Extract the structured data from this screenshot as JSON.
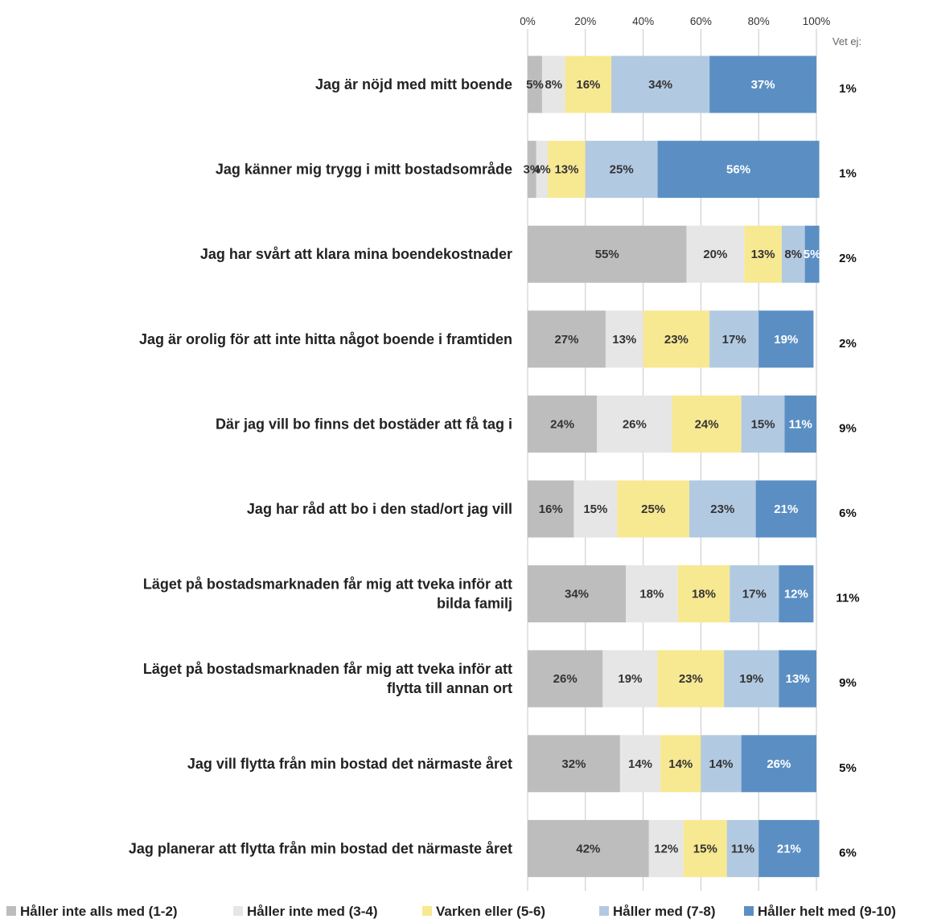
{
  "chart_data": {
    "type": "bar",
    "orientation": "horizontal",
    "stacked": true,
    "xlim": [
      0,
      100
    ],
    "x_ticks": [
      "0%",
      "20%",
      "40%",
      "60%",
      "80%",
      "100%"
    ],
    "extra_column_header": "Vet ej:",
    "categories": [
      [
        "Jag är nöjd med mitt boende"
      ],
      [
        "Jag känner mig trygg i mitt bostadsområde"
      ],
      [
        "Jag har svårt att klara mina boendekostnader"
      ],
      [
        "Jag är orolig för att inte hitta något boende i framtiden"
      ],
      [
        "Där jag vill bo finns det bostäder att få tag i"
      ],
      [
        "Jag har råd att bo i den stad/ort jag vill"
      ],
      [
        "Läget på bostadsmarknaden får mig att tveka inför att",
        "bilda familj"
      ],
      [
        "Läget på bostadsmarknaden får mig att tveka inför att",
        "flytta till annan ort"
      ],
      [
        "Jag vill flytta från min bostad det närmaste året"
      ],
      [
        "Jag planerar att flytta från min bostad det närmaste året"
      ]
    ],
    "series": [
      {
        "name": "Håller inte alls med (1-2)",
        "color": "#bdbdbd",
        "label_color": "#333333",
        "values": [
          5,
          3,
          55,
          27,
          24,
          16,
          34,
          26,
          32,
          42
        ],
        "labels": [
          "5%",
          "3%",
          "55%",
          "27%",
          "24%",
          "16%",
          "34%",
          "26%",
          "32%",
          "42%"
        ]
      },
      {
        "name": "Håller inte med (3-4)",
        "color": "#e6e6e6",
        "label_color": "#333333",
        "values": [
          8,
          4,
          20,
          13,
          26,
          15,
          18,
          19,
          14,
          12
        ],
        "labels": [
          "8%",
          "4%",
          "20%",
          "13%",
          "26%",
          "15%",
          "18%",
          "19%",
          "14%",
          "12%"
        ]
      },
      {
        "name": "Varken eller (5-6)",
        "color": "#f7e892",
        "label_color": "#333333",
        "values": [
          16,
          13,
          13,
          23,
          24,
          25,
          18,
          23,
          14,
          15
        ],
        "labels": [
          "16%",
          "13%",
          "13%",
          "23%",
          "24%",
          "25%",
          "18%",
          "23%",
          "14%",
          "15%"
        ]
      },
      {
        "name": "Håller med (7-8)",
        "color": "#b2c9e2",
        "label_color": "#333333",
        "values": [
          34,
          25,
          8,
          17,
          15,
          23,
          17,
          19,
          14,
          11
        ],
        "labels": [
          "34%",
          "25%",
          "8%",
          "17%",
          "15%",
          "23%",
          "17%",
          "19%",
          "14%",
          "11%"
        ]
      },
      {
        "name": "Håller helt med (9-10)",
        "color": "#5b8fc4",
        "label_color": "#ffffff",
        "values": [
          37,
          56,
          5,
          19,
          11,
          21,
          12,
          13,
          26,
          21
        ],
        "labels": [
          "37%",
          "56%",
          "5%",
          "19%",
          "11%",
          "21%",
          "12%",
          "13%",
          "26%",
          "21%"
        ]
      }
    ],
    "vet_ej": [
      "1%",
      "1%",
      "2%",
      "2%",
      "9%",
      "6%",
      "11%",
      "9%",
      "5%",
      "6%"
    ],
    "grid": true,
    "legend_position": "bottom"
  }
}
